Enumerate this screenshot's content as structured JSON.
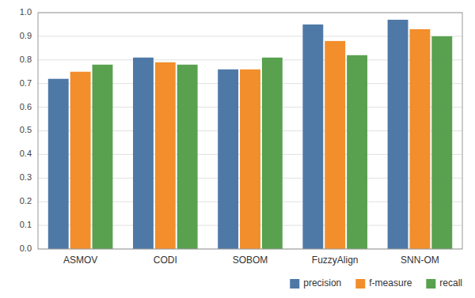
{
  "chart_data": {
    "type": "bar",
    "categories": [
      "ASMOV",
      "CODI",
      "SOBOM",
      "FuzzyAlign",
      "SNN-OM"
    ],
    "series": [
      {
        "name": "precision",
        "color": "#4e79a7",
        "values": [
          0.72,
          0.81,
          0.76,
          0.95,
          0.97
        ]
      },
      {
        "name": "f-measure",
        "color": "#f28e2b",
        "values": [
          0.75,
          0.79,
          0.76,
          0.88,
          0.93
        ]
      },
      {
        "name": "recall",
        "color": "#59a14f",
        "values": [
          0.78,
          0.78,
          0.81,
          0.82,
          0.9
        ]
      }
    ],
    "ylim": [
      0.0,
      1.0
    ],
    "yticks": [
      {
        "value": 0,
        "label": "0.0"
      },
      0.1,
      0.2,
      0.3,
      0.4,
      0.5,
      0.6,
      0.7,
      0.8,
      0.9,
      {
        "value": 1,
        "label": "1.0"
      }
    ],
    "grid": true,
    "legend": "lower right"
  }
}
